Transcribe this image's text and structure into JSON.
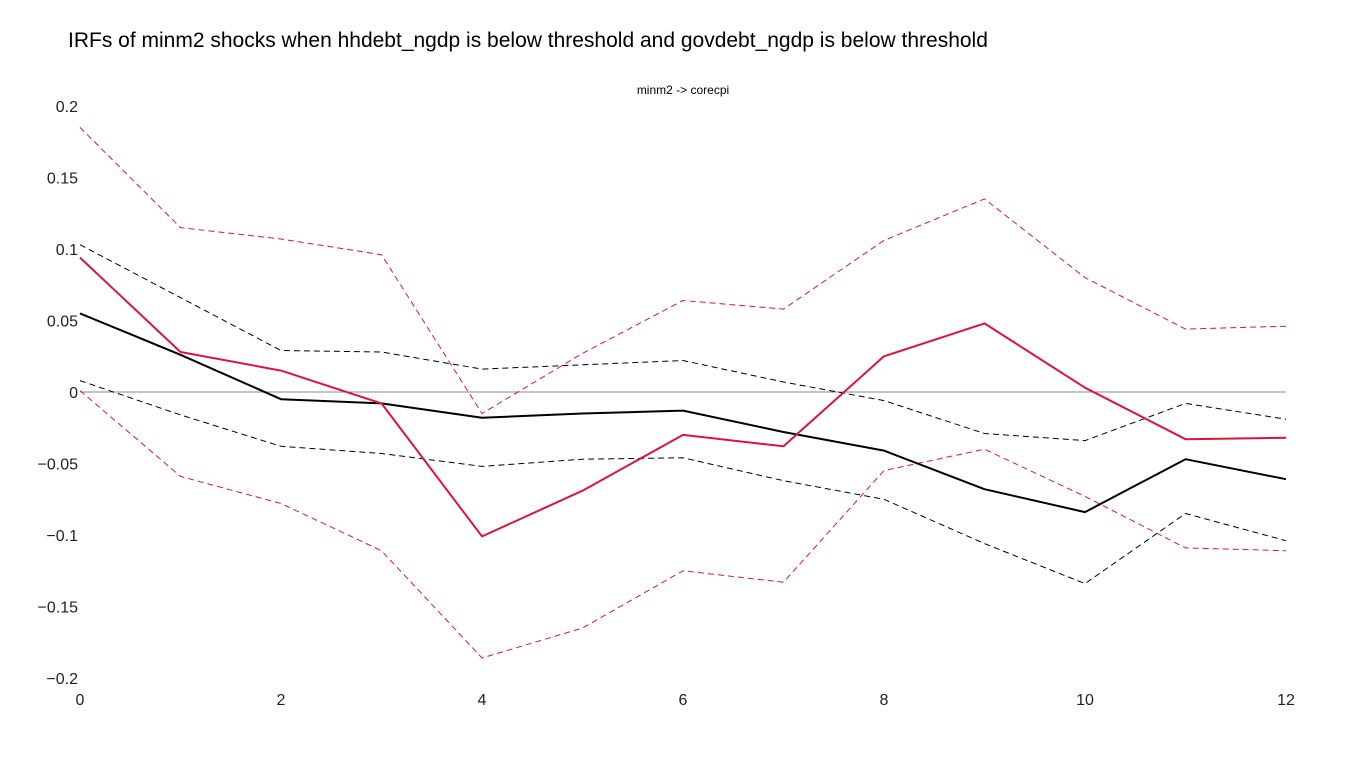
{
  "chart_data": {
    "type": "line",
    "title": "IRFs of minm2 shocks when hhdebt_ngdp is below threshold and govdebt_ngdp is below threshold",
    "subplot_title": "minm2 -> corecpi",
    "xlabel": "",
    "ylabel": "",
    "xlim": [
      0,
      12
    ],
    "ylim": [
      -0.2,
      0.2
    ],
    "x_ticks": [
      "0",
      "2",
      "4",
      "6",
      "8",
      "10",
      "12"
    ],
    "y_ticks": [
      "0.2",
      "0.15",
      "0.1",
      "0.05",
      "0",
      "−0.05",
      "−0.1",
      "−0.15",
      "−0.2"
    ],
    "y_tick_values": [
      0.2,
      0.15,
      0.1,
      0.05,
      0,
      -0.05,
      -0.1,
      -0.15,
      -0.2
    ],
    "x_tick_values": [
      0,
      2,
      4,
      6,
      8,
      10,
      12
    ],
    "zero_line": true,
    "grid": false,
    "x": [
      0,
      1,
      2,
      3,
      4,
      5,
      6,
      7,
      8,
      9,
      10,
      11,
      12
    ],
    "series": [
      {
        "color": "#000000",
        "dash": false,
        "values": [
          0.055,
          0.026,
          -0.005,
          -0.008,
          -0.018,
          -0.015,
          -0.013,
          -0.028,
          -0.041,
          -0.068,
          -0.084,
          -0.047,
          -0.061
        ]
      },
      {
        "color": "#000000",
        "dash": true,
        "values": [
          0.103,
          0.066,
          0.029,
          0.028,
          0.016,
          0.019,
          0.022,
          0.007,
          -0.006,
          -0.029,
          -0.034,
          -0.008,
          -0.019
        ]
      },
      {
        "color": "#000000",
        "dash": true,
        "values": [
          0.008,
          -0.016,
          -0.038,
          -0.043,
          -0.052,
          -0.047,
          -0.046,
          -0.062,
          -0.075,
          -0.106,
          -0.134,
          -0.085,
          -0.104
        ]
      },
      {
        "color": "#dc143c",
        "dash": false,
        "values": [
          0.094,
          0.028,
          0.015,
          -0.008,
          -0.101,
          -0.069,
          -0.03,
          -0.038,
          0.025,
          0.048,
          0.003,
          -0.033,
          -0.032
        ]
      },
      {
        "color": "#dc143c",
        "dash": true,
        "values": [
          0.185,
          0.115,
          0.107,
          0.096,
          -0.015,
          0.027,
          0.064,
          0.058,
          0.106,
          0.135,
          0.08,
          0.044,
          0.046
        ]
      },
      {
        "color": "#dc143c",
        "dash": true,
        "values": [
          0.001,
          -0.059,
          -0.078,
          -0.111,
          -0.186,
          -0.165,
          -0.125,
          -0.133,
          -0.055,
          -0.04,
          -0.073,
          -0.109,
          -0.111
        ]
      }
    ]
  }
}
